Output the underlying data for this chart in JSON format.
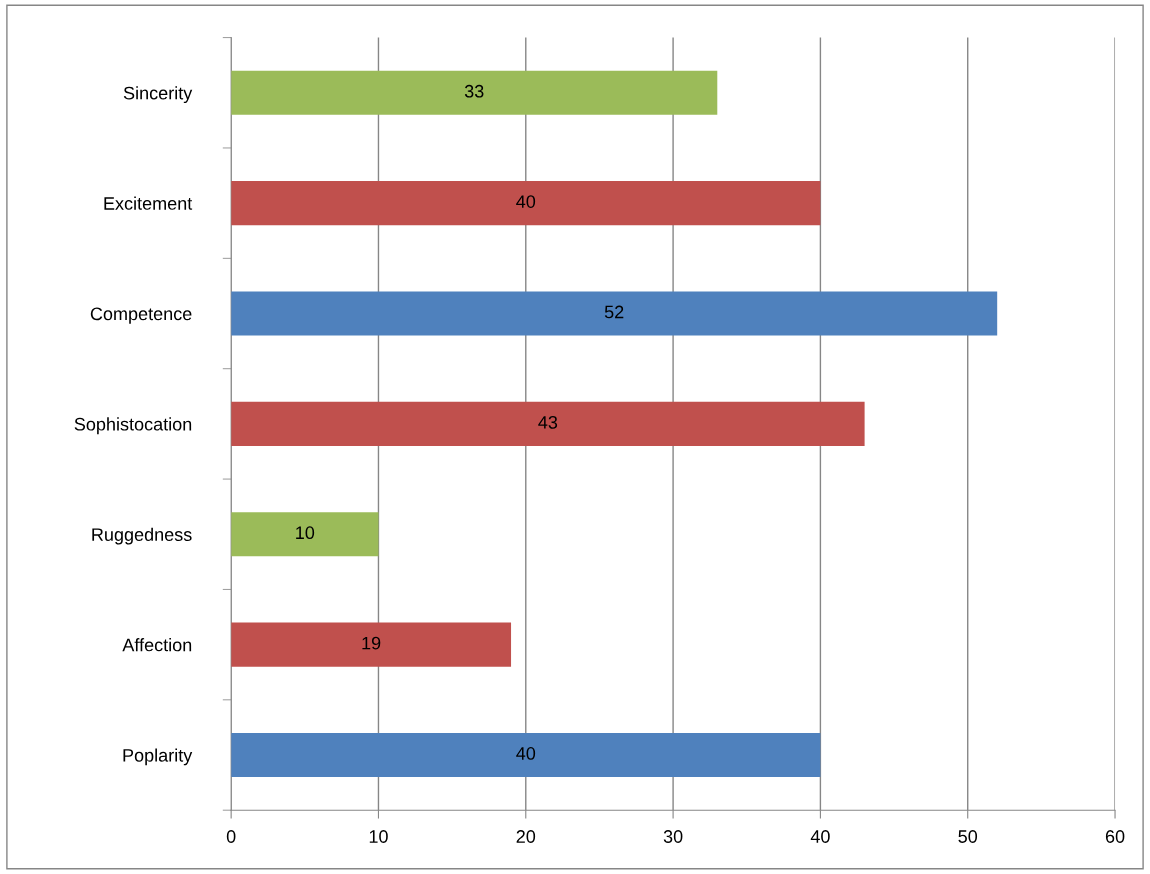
{
  "chart_data": {
    "type": "bar",
    "orientation": "horizontal",
    "categories": [
      "Sincerity",
      "Excitement",
      "Competence",
      "Sophistocation",
      "Ruggedness",
      "Affection",
      "Poplarity"
    ],
    "values": [
      33,
      40,
      52,
      43,
      10,
      19,
      40
    ],
    "colors": [
      "#9bbb59",
      "#c0504d",
      "#4f81bd",
      "#c0504d",
      "#9bbb59",
      "#c0504d",
      "#4f81bd"
    ],
    "xlim": [
      0,
      60
    ],
    "xticks": [
      0,
      10,
      20,
      30,
      40,
      50,
      60
    ],
    "grid": "x",
    "data_labels": true
  }
}
